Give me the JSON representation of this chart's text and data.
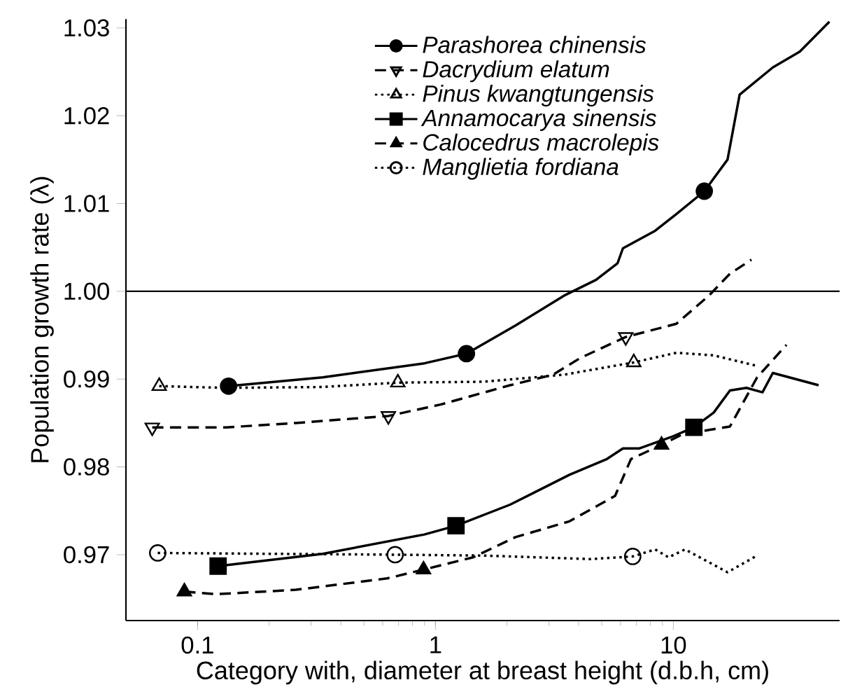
{
  "chart_data": {
    "type": "line",
    "xlabel": "Category with, diameter at breast height (d.b.h, cm)",
    "ylabel": "Population growth rate (λ)",
    "log": "x",
    "xlim": [
      0.05,
      50
    ],
    "ylim": [
      0.9625,
      1.031
    ],
    "xticks": [
      0.1,
      1,
      10
    ],
    "yticks": [
      {
        "value": 0.97,
        "label": "0.97"
      },
      {
        "value": 0.98,
        "label": "0.98"
      },
      {
        "value": 0.99,
        "label": "0.99"
      },
      {
        "value": 1.0,
        "label": "1.00"
      },
      {
        "value": 1.01,
        "label": "1.01"
      },
      {
        "value": 1.02,
        "label": "1.02"
      },
      {
        "value": 1.03,
        "label": "1.03"
      }
    ],
    "legend": "top",
    "grid": false,
    "ref_lines": [
      {
        "axis": "y",
        "value": 1.0,
        "color": "#000000",
        "line_style": "solid"
      }
    ],
    "series": [
      {
        "name": "Parashorea chinensis",
        "line_style": "solid",
        "color": "#000000",
        "x": [
          0.135,
          0.336,
          0.9,
          1.35,
          2.17,
          3.47,
          4.73,
          5.83,
          6.14,
          8.39,
          10.3,
          13.5,
          16.9,
          19.0,
          26.2,
          34.0,
          45.3
        ],
        "values": [
          0.9892,
          0.9902,
          0.9918,
          0.9929,
          0.9961,
          0.9995,
          1.0013,
          1.0032,
          1.0049,
          1.0069,
          1.0088,
          1.0114,
          1.015,
          1.0224,
          1.0255,
          1.0273,
          1.0307
        ]
      },
      {
        "type": "scatter",
        "marker": "circle",
        "color": "#000000",
        "x": [
          0.135,
          1.35,
          13.5
        ],
        "values": [
          0.9892,
          0.9929,
          1.0114
        ]
      },
      {
        "name": "Dacrydium elatum",
        "line_style": "dashed",
        "color": "#000000",
        "x": [
          0.0645,
          0.0786,
          0.132,
          0.259,
          0.634,
          1.05,
          2.06,
          3.12,
          4.06,
          6.31,
          10.3,
          14.1,
          17.3,
          21.3
        ],
        "values": [
          0.9845,
          0.9845,
          0.9845,
          0.985,
          0.9858,
          0.9871,
          0.9893,
          0.9905,
          0.9924,
          0.9948,
          0.9963,
          0.9995,
          1.002,
          1.0036
        ]
      },
      {
        "type": "scatter",
        "marker": "triangle down open",
        "color": "#000000",
        "x": [
          0.0645,
          0.634,
          6.31
        ],
        "values": [
          0.9845,
          0.9858,
          0.9948
        ]
      },
      {
        "name": "Pinus kwangtungensis",
        "line_style": "dotted",
        "color": "#000000",
        "x": [
          0.069,
          0.132,
          0.336,
          0.695,
          1.59,
          3.47,
          6.82,
          10.3,
          14.8,
          22.5
        ],
        "values": [
          0.9892,
          0.989,
          0.9891,
          0.9896,
          0.9897,
          0.9905,
          0.9919,
          0.993,
          0.9927,
          0.9915
        ]
      },
      {
        "type": "scatter",
        "marker": "triangle open",
        "color": "#000000",
        "x": [
          0.069,
          0.695,
          6.82
        ],
        "values": [
          0.9892,
          0.9896,
          0.9919
        ]
      },
      {
        "name": "Annamocarya sinensis",
        "line_style": "solid",
        "color": "#000000",
        "x": [
          0.122,
          0.336,
          0.898,
          1.22,
          2.06,
          3.66,
          5.26,
          6.14,
          7.18,
          9.8,
          12.2,
          14.8,
          17.3,
          20.3,
          23.7,
          26.2,
          40.8
        ],
        "values": [
          0.9687,
          0.9701,
          0.9723,
          0.9733,
          0.9757,
          0.9791,
          0.9809,
          0.9821,
          0.9821,
          0.9834,
          0.9845,
          0.9862,
          0.9887,
          0.989,
          0.9885,
          0.9907,
          0.9893
        ]
      },
      {
        "type": "scatter",
        "marker": "square",
        "color": "#000000",
        "x": [
          0.122,
          1.22,
          12.2
        ],
        "values": [
          0.9687,
          0.9733,
          0.9845
        ]
      },
      {
        "name": "Calocedrus macrolepis",
        "line_style": "dashed",
        "color": "#000000",
        "x": [
          0.088,
          0.119,
          0.259,
          0.627,
          0.891,
          1.44,
          2.17,
          3.66,
          5.69,
          6.64,
          8.92,
          10.9,
          17.3,
          22.5,
          29.9
        ],
        "values": [
          0.9658,
          0.9655,
          0.966,
          0.9673,
          0.9683,
          0.9697,
          0.972,
          0.9738,
          0.9767,
          0.9809,
          0.9825,
          0.9837,
          0.9846,
          0.9902,
          0.9939
        ]
      },
      {
        "type": "scatter",
        "marker": "triangle",
        "color": "#000000",
        "x": [
          0.088,
          0.891,
          8.92
        ],
        "values": [
          0.9658,
          0.9683,
          0.9825
        ]
      },
      {
        "name": "Manglietia fordiana",
        "line_style": "dotted",
        "color": "#000000",
        "x": [
          0.068,
          0.2,
          0.677,
          1.59,
          4.5,
          6.75,
          8.39,
          9.55,
          11.2,
          16.9,
          22.5
        ],
        "values": [
          0.9702,
          0.9701,
          0.97,
          0.9699,
          0.9695,
          0.9698,
          0.9706,
          0.9697,
          0.9706,
          0.968,
          0.9699
        ]
      },
      {
        "type": "scatter",
        "marker": "circle open",
        "color": "#000000",
        "x": [
          0.068,
          0.677,
          6.75
        ],
        "values": [
          0.9702,
          0.97,
          0.9698
        ]
      }
    ]
  }
}
